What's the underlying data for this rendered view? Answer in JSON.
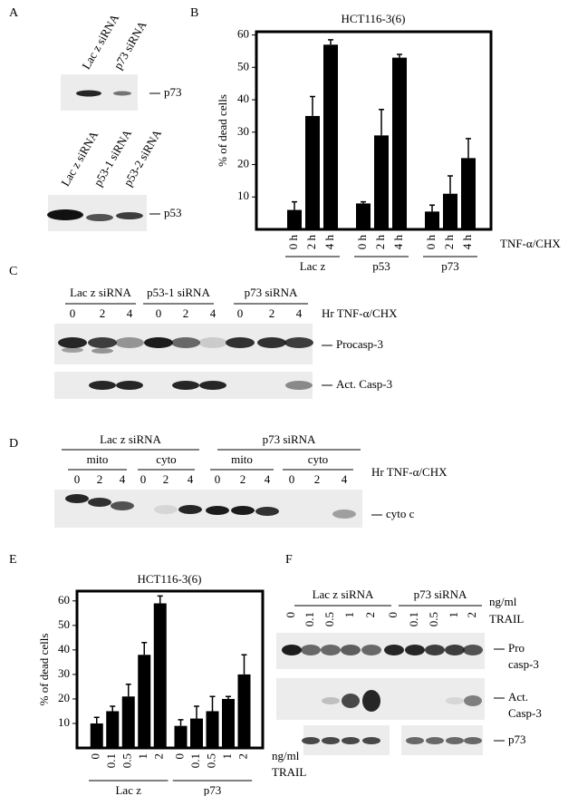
{
  "panel_labels": [
    "A",
    "B",
    "C",
    "D",
    "E",
    "F"
  ],
  "panel_a": {
    "blot_top": {
      "lanes": [
        "Lac z siRNA",
        "p73 siRNA"
      ],
      "protein": "p73"
    },
    "blot_bottom": {
      "lanes": [
        "Lac z siRNA",
        "p53-1 siRNA",
        "p53-2 siRNA"
      ],
      "protein": "p53"
    }
  },
  "chart_data": [
    {
      "type": "bar",
      "title": "HCT116-3(6)",
      "y_label": "% of dead cells",
      "x_label": [
        "TNF-α/CHX"
      ],
      "groups": [
        "Lac z",
        "p53",
        "p73"
      ],
      "categories": [
        "0 h",
        "2 h",
        "4 h",
        "0 h",
        "2 h",
        "4 h",
        "0 h",
        "2 h",
        "4 h"
      ],
      "values": [
        6,
        35,
        57,
        8,
        29,
        53,
        5.5,
        11,
        22
      ],
      "errors": [
        2.5,
        6,
        1.5,
        0.5,
        8,
        1,
        2,
        5.5,
        6
      ],
      "color": "#000000",
      "ylim": [
        0,
        61
      ],
      "yticks": [
        10,
        20,
        30,
        40,
        50,
        60
      ]
    },
    {
      "type": "bar",
      "title": "HCT116-3(6)",
      "y_label": "% of dead cells",
      "x_label": [
        "ng/ml",
        "TRAIL"
      ],
      "groups": [
        "Lac z",
        "p73"
      ],
      "categories": [
        "0",
        "0.1",
        "0.5",
        "1",
        "2",
        "0",
        "0.1",
        "0.5",
        "1",
        "2"
      ],
      "values": [
        10,
        15,
        21,
        38,
        59,
        9,
        12,
        15,
        20,
        30
      ],
      "errors": [
        2.5,
        2,
        5,
        5,
        3,
        2.5,
        5,
        6,
        1,
        8
      ],
      "color": "#000000",
      "ylim": [
        0,
        64
      ],
      "yticks": [
        10,
        20,
        30,
        40,
        50,
        60
      ]
    }
  ],
  "panel_c": {
    "groups": [
      "Lac z siRNA",
      "p53-1 siRNA",
      "p73 siRNA"
    ],
    "lanes": [
      "0",
      "2",
      "4",
      "0",
      "2",
      "4",
      "0",
      "2",
      "4"
    ],
    "treatment": "Hr TNF-α/CHX",
    "proteins": [
      "Procasp-3",
      "Act. Casp-3"
    ]
  },
  "panel_d": {
    "groups": [
      "Lac z siRNA",
      "p73 siRNA"
    ],
    "fractions": [
      "mito",
      "cyto",
      "mito",
      "cyto"
    ],
    "lanes": [
      "0",
      "2",
      "4",
      "0",
      "2",
      "4",
      "0",
      "2",
      "4",
      "0",
      "2",
      "4"
    ],
    "treatment": "Hr TNF-α/CHX",
    "protein": "cyto c"
  },
  "panel_f": {
    "groups": [
      "Lac z siRNA",
      "p73 siRNA"
    ],
    "lanes": [
      "0",
      "0.1",
      "0.5",
      "1",
      "2",
      "0",
      "0.1",
      "0.5",
      "1",
      "2"
    ],
    "treatment": [
      "ng/ml",
      "TRAIL"
    ],
    "proteins": [
      [
        "Pro",
        "casp-3"
      ],
      [
        "Act.",
        "Casp-3"
      ],
      [
        "p73"
      ]
    ]
  }
}
